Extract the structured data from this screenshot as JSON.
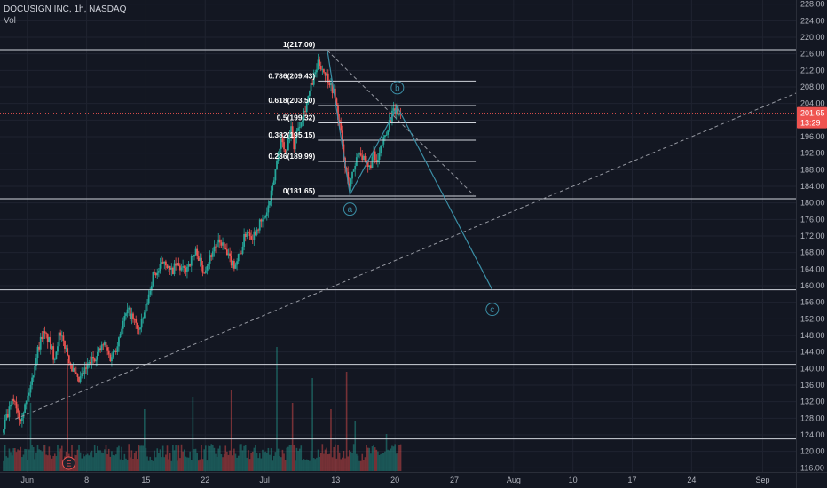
{
  "header": {
    "symbol": "DOCUSIGN INC, 1h, NASDAQ",
    "volume_label": "Vol"
  },
  "colors": {
    "background": "#131722",
    "grid": "#1f2330",
    "up": "#26a69a",
    "down": "#ef5350",
    "line": "#d1d4dc",
    "wave": "#3b8ea5",
    "price_line": "#ef5350",
    "axis_text": "#b2b5be"
  },
  "chart_data": {
    "type": "candlestick",
    "ylim": [
      115,
      229
    ],
    "y_ticks": [
      116,
      120,
      124,
      128,
      132,
      136,
      140,
      144,
      148,
      152,
      156,
      160,
      164,
      168,
      172,
      176,
      180,
      184,
      188,
      192,
      196,
      200,
      204,
      208,
      212,
      216,
      220,
      224,
      228
    ],
    "x_ticks": [
      {
        "label": "Jun",
        "x": 0
      },
      {
        "label": "8",
        "x": 5
      },
      {
        "label": "15",
        "x": 10
      },
      {
        "label": "22",
        "x": 15
      },
      {
        "label": "Jul",
        "x": 20
      },
      {
        "label": "13",
        "x": 26
      },
      {
        "label": "20",
        "x": 31
      },
      {
        "label": "27",
        "x": 36
      },
      {
        "label": "Aug",
        "x": 41
      },
      {
        "label": "10",
        "x": 46
      },
      {
        "label": "17",
        "x": 51
      },
      {
        "label": "24",
        "x": 56
      },
      {
        "label": "Sep",
        "x": 62
      }
    ],
    "xlim": [
      -2.3,
      64.8
    ],
    "current_price": {
      "value": 201.65,
      "label": "201.65",
      "countdown": "13:29"
    },
    "horizontal_levels": [
      217,
      181,
      159,
      141,
      123
    ],
    "fibonacci": [
      {
        "label": "1(217.00)",
        "value": 217.0
      },
      {
        "label": "0.786(209.43)",
        "value": 209.43
      },
      {
        "label": "0.618(203.50)",
        "value": 203.5
      },
      {
        "label": "0.5(199.32)",
        "value": 199.32
      },
      {
        "label": "0.382(195.15)",
        "value": 195.15
      },
      {
        "label": "0.236(189.99)",
        "value": 189.99
      },
      {
        "label": "0(181.65)",
        "value": 181.65
      }
    ],
    "fib_x_range": [
      24.5,
      37.8
    ],
    "trendline": {
      "from": {
        "x": -1,
        "y": 127.8
      },
      "to": {
        "x": 64.8,
        "y": 206.5
      }
    },
    "wave_path": [
      {
        "x": 25.3,
        "y": 216.8
      },
      {
        "x": 27.2,
        "y": 182.0
      },
      {
        "x": 31.2,
        "y": 203.2
      },
      {
        "x": 39.2,
        "y": 159.0
      }
    ],
    "wave_labels": [
      {
        "label": "a",
        "x": 27.2,
        "y": 178.5
      },
      {
        "label": "b",
        "x": 31.2,
        "y": 207.8
      },
      {
        "label": "c",
        "x": 39.2,
        "y": 154.3
      }
    ],
    "wave_dashed": {
      "from": {
        "x": 25.3,
        "y": 216.8
      },
      "to": {
        "x": 37.6,
        "y": 182.0
      }
    },
    "event_marker": {
      "label": "E",
      "x": 3.5
    },
    "close_path": [
      {
        "x": -2.0,
        "y": 124.5
      },
      {
        "x": -1.6,
        "y": 128.2
      },
      {
        "x": -1.0,
        "y": 133.0
      },
      {
        "x": -0.5,
        "y": 128.0
      },
      {
        "x": 0.0,
        "y": 131.5
      },
      {
        "x": 0.5,
        "y": 137.0
      },
      {
        "x": 0.9,
        "y": 143.5
      },
      {
        "x": 1.4,
        "y": 148.5
      },
      {
        "x": 1.9,
        "y": 147.0
      },
      {
        "x": 2.4,
        "y": 142.5
      },
      {
        "x": 2.8,
        "y": 148.0
      },
      {
        "x": 3.3,
        "y": 145.5
      },
      {
        "x": 3.9,
        "y": 140.0
      },
      {
        "x": 4.4,
        "y": 136.5
      },
      {
        "x": 4.9,
        "y": 139.0
      },
      {
        "x": 5.4,
        "y": 141.5
      },
      {
        "x": 6.0,
        "y": 143.5
      },
      {
        "x": 6.6,
        "y": 146.0
      },
      {
        "x": 7.1,
        "y": 142.5
      },
      {
        "x": 7.6,
        "y": 145.0
      },
      {
        "x": 8.1,
        "y": 150.5
      },
      {
        "x": 8.6,
        "y": 154.0
      },
      {
        "x": 9.1,
        "y": 151.5
      },
      {
        "x": 9.6,
        "y": 149.0
      },
      {
        "x": 10.2,
        "y": 155.5
      },
      {
        "x": 10.7,
        "y": 162.5
      },
      {
        "x": 11.2,
        "y": 163.5
      },
      {
        "x": 11.7,
        "y": 166.5
      },
      {
        "x": 12.2,
        "y": 163.0
      },
      {
        "x": 12.7,
        "y": 165.0
      },
      {
        "x": 13.3,
        "y": 163.5
      },
      {
        "x": 13.9,
        "y": 166.0
      },
      {
        "x": 14.4,
        "y": 168.5
      },
      {
        "x": 14.9,
        "y": 163.5
      },
      {
        "x": 15.4,
        "y": 166.0
      },
      {
        "x": 15.9,
        "y": 169.5
      },
      {
        "x": 16.5,
        "y": 170.5
      },
      {
        "x": 17.0,
        "y": 167.0
      },
      {
        "x": 17.6,
        "y": 165.0
      },
      {
        "x": 18.1,
        "y": 168.0
      },
      {
        "x": 18.6,
        "y": 173.5
      },
      {
        "x": 19.1,
        "y": 172.0
      },
      {
        "x": 19.6,
        "y": 174.5
      },
      {
        "x": 20.1,
        "y": 176.0
      },
      {
        "x": 20.5,
        "y": 179.5
      },
      {
        "x": 20.8,
        "y": 183.5
      },
      {
        "x": 21.2,
        "y": 191.0
      },
      {
        "x": 21.5,
        "y": 195.5
      },
      {
        "x": 21.9,
        "y": 192.0
      },
      {
        "x": 22.3,
        "y": 198.5
      },
      {
        "x": 22.6,
        "y": 194.0
      },
      {
        "x": 23.0,
        "y": 199.0
      },
      {
        "x": 23.4,
        "y": 201.5
      },
      {
        "x": 23.8,
        "y": 205.5
      },
      {
        "x": 24.2,
        "y": 209.5
      },
      {
        "x": 24.7,
        "y": 214.0
      },
      {
        "x": 25.0,
        "y": 212.5
      },
      {
        "x": 25.5,
        "y": 210.0
      },
      {
        "x": 26.0,
        "y": 206.5
      },
      {
        "x": 26.5,
        "y": 198.0
      },
      {
        "x": 26.9,
        "y": 188.5
      },
      {
        "x": 27.3,
        "y": 184.0
      },
      {
        "x": 27.7,
        "y": 189.0
      },
      {
        "x": 28.1,
        "y": 193.0
      },
      {
        "x": 28.5,
        "y": 190.0
      },
      {
        "x": 28.9,
        "y": 188.0
      },
      {
        "x": 29.3,
        "y": 191.5
      },
      {
        "x": 29.6,
        "y": 189.0
      },
      {
        "x": 30.0,
        "y": 194.0
      },
      {
        "x": 30.4,
        "y": 197.5
      },
      {
        "x": 30.8,
        "y": 201.0
      },
      {
        "x": 31.2,
        "y": 202.5
      },
      {
        "x": 31.5,
        "y": 201.65
      }
    ],
    "volume_spikes": [
      {
        "x": 0.3,
        "v": 0.55
      },
      {
        "x": 3.4,
        "v": 0.9
      },
      {
        "x": 9.9,
        "v": 0.5
      },
      {
        "x": 14.0,
        "v": 0.6
      },
      {
        "x": 17.2,
        "v": 0.65
      },
      {
        "x": 21.0,
        "v": 1.0
      },
      {
        "x": 22.4,
        "v": 0.55
      },
      {
        "x": 24.0,
        "v": 0.75
      },
      {
        "x": 25.6,
        "v": 0.5
      },
      {
        "x": 26.9,
        "v": 0.8
      },
      {
        "x": 27.6,
        "v": 0.4
      },
      {
        "x": 30.3,
        "v": 0.3
      }
    ]
  }
}
